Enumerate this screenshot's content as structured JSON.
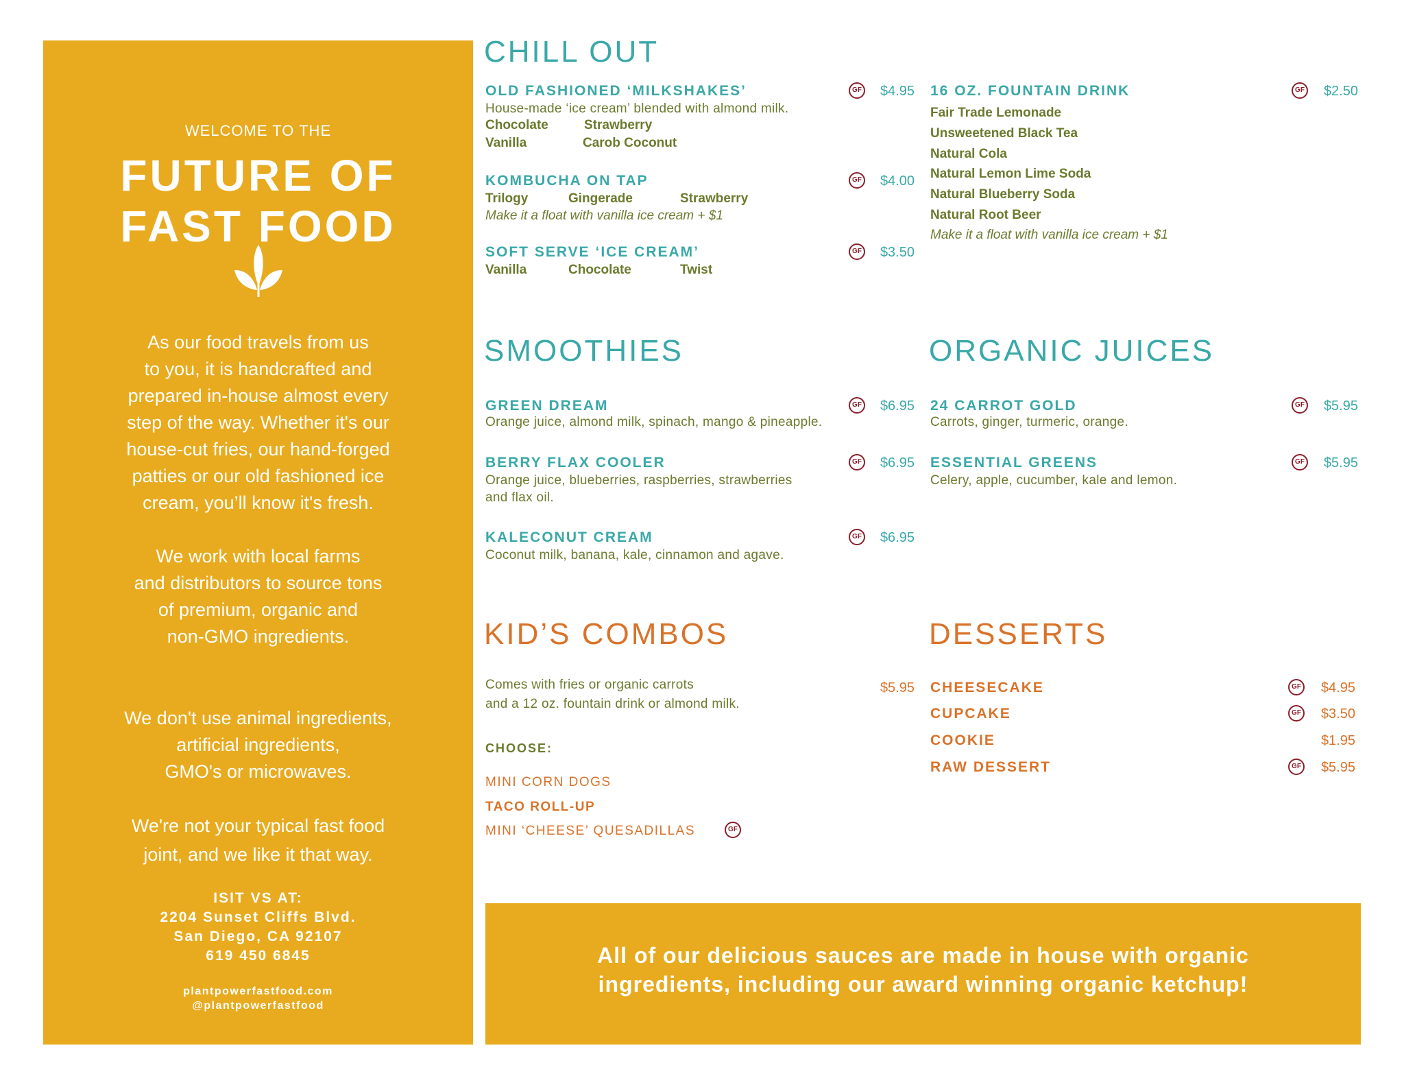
{
  "colors": {
    "panel": "#E8AA1E",
    "teal": "#3AA8A8",
    "orange": "#D9732A",
    "green": "#6B7A2E",
    "gf": "#8B1E2A"
  },
  "sidebar": {
    "welcome": "WELCOME TO THE",
    "title_line1": "FUTURE OF",
    "title_line2": "FAST FOOD",
    "logo_icon": "leaf-sprout-icon",
    "paragraphs": [
      "As our food travels from us\nto you, it is handcrafted and\nprepared in-house almost every\nstep of the way. Whether it's our\nhouse-cut fries, our hand-forged\npatties or our old fashioned ice\ncream, you’ll know it's fresh.",
      "We work with local farms\nand distributors to source tons\nof premium, organic and\nnon-GMO ingredients.",
      "We don't use animal ingredients,\nartificial ingredients,\nGMO's or microwaves.",
      "We're not your typical fast food\njoint, and we like it that way."
    ],
    "visit": "ISIT VS AT:\n2204 Sunset Cliffs Blvd.\nSan Diego, CA 92107\n619 450 6845",
    "web": "plantpowerfastfood.com\n@plantpowerfastfood"
  },
  "gf_label": "GF",
  "chill_out": {
    "heading": "CHILL OUT",
    "milkshakes": {
      "title": "OLD FASHIONED ‘MILKSHAKES’",
      "price": "$4.95",
      "desc": "House-made ‘ice cream’ blended with almond milk.",
      "flavors": [
        "Chocolate",
        "Strawberry",
        "Vanilla",
        "Carob Coconut"
      ]
    },
    "kombucha": {
      "title": "KOMBUCHA ON TAP",
      "price": "$4.00",
      "flavors": [
        "Trilogy",
        "Gingerade",
        "Strawberry"
      ],
      "note": "Make it a float with vanilla ice cream + $1"
    },
    "soft_serve": {
      "title": "SOFT SERVE ‘ICE CREAM’",
      "price": "$3.50",
      "flavors": [
        "Vanilla",
        "Chocolate",
        "Twist"
      ]
    },
    "fountain": {
      "title": "16 OZ. FOUNTAIN DRINK",
      "price": "$2.50",
      "options": [
        "Fair Trade Lemonade",
        "Unsweetened Black Tea",
        "Natural Cola",
        "Natural Lemon Lime Soda",
        "Natural Blueberry Soda",
        "Natural Root Beer"
      ],
      "note": "Make it a float with vanilla ice cream + $1"
    }
  },
  "smoothies": {
    "heading": "SMOOTHIES",
    "items": [
      {
        "title": "GREEN DREAM",
        "price": "$6.95",
        "desc": "Orange juice, almond milk, spinach, mango & pineapple."
      },
      {
        "title": "BERRY FLAX COOLER",
        "price": "$6.95",
        "desc1": "Orange juice, blueberries, raspberries, strawberries",
        "desc2": "and flax oil."
      },
      {
        "title": "KALECONUT CREAM",
        "price": "$6.95",
        "desc": "Coconut milk, banana, kale, cinnamon and agave."
      }
    ]
  },
  "juices": {
    "heading": "ORGANIC JUICES",
    "items": [
      {
        "title": "24 CARROT GOLD",
        "price": "$5.95",
        "desc": "Carrots, ginger, turmeric, orange."
      },
      {
        "title": "ESSENTIAL GREENS",
        "price": "$5.95",
        "desc": "Celery, apple, cucumber, kale and lemon."
      }
    ]
  },
  "kids": {
    "heading": "KID’S COMBOS",
    "desc1": "Comes with fries or organic carrots",
    "desc2": "and a 12 oz. fountain drink or almond milk.",
    "price": "$5.95",
    "choose": "CHOOSE:",
    "options": [
      "MINI CORN DOGS",
      "TACO ROLL-UP",
      "MINI ‘CHEESE’ QUESADILLAS"
    ]
  },
  "desserts": {
    "heading": "DESSERTS",
    "items": [
      {
        "title": "CHEESECAKE",
        "price": "$4.95",
        "gf": true
      },
      {
        "title": "CUPCAKE",
        "price": "$3.50",
        "gf": true
      },
      {
        "title": "COOKIE",
        "price": "$1.95",
        "gf": false
      },
      {
        "title": "RAW DESSERT",
        "price": "$5.95",
        "gf": true
      }
    ]
  },
  "banner": {
    "text": "All of our delicious sauces are made in house with organic\ningredients, including our award winning organic ketchup!"
  }
}
